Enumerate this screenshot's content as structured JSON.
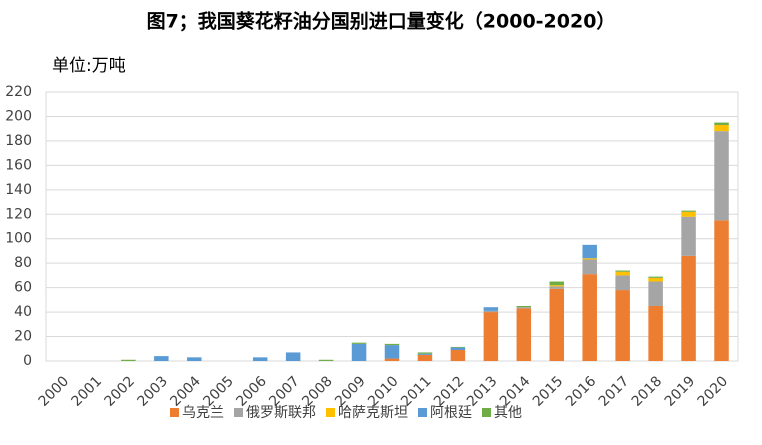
{
  "chart_data": {
    "type": "stacked-bar",
    "title": "图7；我国葵花籽油分国别进口量变化（2000-2020）",
    "unit_label": "单位:万吨",
    "categories": [
      "2000",
      "2001",
      "2002",
      "2003",
      "2004",
      "2005",
      "2006",
      "2007",
      "2008",
      "2009",
      "2010",
      "2011",
      "2012",
      "2013",
      "2014",
      "2015",
      "2016",
      "2017",
      "2018",
      "2019",
      "2020"
    ],
    "series": [
      {
        "name": "乌克兰",
        "color": "#ED7D31",
        "values": [
          0,
          0,
          0,
          0,
          0,
          0,
          0,
          0,
          0,
          0,
          2,
          5,
          9,
          40,
          43,
          59,
          71,
          58,
          45,
          86,
          115
        ]
      },
      {
        "name": "俄罗斯联邦",
        "color": "#A5A5A5",
        "values": [
          0,
          0,
          0,
          0,
          0,
          0,
          0,
          0,
          0,
          0,
          0,
          0,
          0,
          1,
          1,
          2,
          12,
          12,
          20,
          32,
          73
        ]
      },
      {
        "name": "哈萨克斯坦",
        "color": "#FFC000",
        "values": [
          0,
          0,
          0,
          0,
          0,
          0,
          0,
          0,
          0,
          0,
          0,
          0,
          0,
          0,
          0,
          1,
          1,
          3,
          3,
          4,
          5
        ]
      },
      {
        "name": "阿根廷",
        "color": "#5B9BD5",
        "values": [
          0,
          0,
          0,
          4,
          3,
          0,
          3,
          7,
          0,
          14,
          11,
          1,
          2,
          3,
          0,
          0,
          11,
          0,
          0,
          0,
          0
        ]
      },
      {
        "name": "其他",
        "color": "#70AD47",
        "values": [
          0,
          0,
          1,
          0,
          0,
          0,
          0,
          0,
          1,
          1,
          1,
          1,
          0.5,
          0,
          1,
          3,
          0,
          1,
          1,
          1,
          2
        ]
      }
    ],
    "ylim": [
      0,
      220
    ],
    "yticks": [
      0,
      20,
      40,
      60,
      80,
      100,
      120,
      140,
      160,
      180,
      200,
      220
    ],
    "grid": true
  }
}
